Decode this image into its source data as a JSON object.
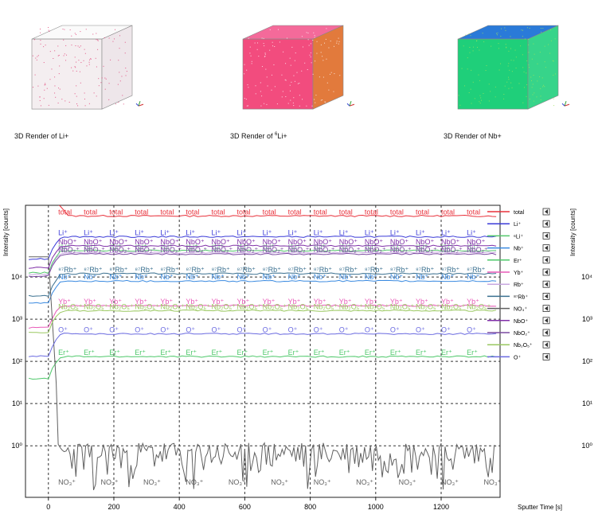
{
  "renders": [
    {
      "caption": "3D Render of Li+",
      "colors": {
        "top": "#fafafa",
        "front": "#f4eef0",
        "side": "#eee6ea",
        "speck": "#e0336e"
      }
    },
    {
      "caption_pre": "3D Render of ",
      "caption_sup": "6",
      "caption_post": "Li+",
      "colors": {
        "top": "#f46a9a",
        "front": "#f24c7e",
        "side": "#e27a3c",
        "speck": "#ffffff"
      }
    },
    {
      "caption": "3D Render of Nb+",
      "colors": {
        "top": "#2a7ad8",
        "front": "#1fcf7a",
        "side": "#37d48a",
        "speck": "#9de35c"
      }
    }
  ],
  "chart_data": {
    "type": "line",
    "xlabel": "Sputter Time [s]",
    "ylabel": "Intensity [counts]",
    "xlim": [
      -70,
      1380
    ],
    "ylog": true,
    "ylim": [
      0.06,
      500000
    ],
    "x_ticks": [
      0,
      200,
      400,
      600,
      800,
      1000,
      1200
    ],
    "y_tick_labels": [
      "10⁰",
      "10¹",
      "10²",
      "10³",
      "10⁴"
    ],
    "y_tick_values": [
      1,
      10,
      100,
      1000,
      10000
    ],
    "grid": "dashed-vertical-horizontal",
    "legend_position": "top-right",
    "series": [
      {
        "name": "total",
        "color": "#e8303a",
        "level": 280000,
        "label_text": "total"
      },
      {
        "name": "Li⁺",
        "color": "#3a3ad8",
        "level": 90000,
        "label_text": "Li⁺"
      },
      {
        "name": "⁶Li⁺",
        "color": "#53c86b",
        "level": 42000,
        "label_text": "⁶Li⁺"
      },
      {
        "name": "Nb⁺",
        "color": "#3a8ae0",
        "level": 8000,
        "label_text": "Nb⁺"
      },
      {
        "name": "Er⁺",
        "color": "#4ec86a",
        "level": 130,
        "label_text": "Er⁺"
      },
      {
        "name": "Yb⁺",
        "color": "#e85ab8",
        "level": 2100,
        "label_text": "Yb⁺"
      },
      {
        "name": "Rb⁺",
        "color": "#c8a8e0",
        "level": 38000,
        "label_text": "Rb⁺"
      },
      {
        "name": "⁸⁷Rb⁺",
        "color": "#3a7090",
        "level": 12000,
        "label_text": "⁸⁷Rb⁺"
      },
      {
        "name": "NO₃⁺",
        "color": "#606060",
        "level": 0.1,
        "label_text": "NO₃⁺"
      },
      {
        "name": "NbO⁺",
        "color": "#8030a8",
        "level": 55000,
        "label_text": "NbO⁺"
      },
      {
        "name": "NbO₂⁺",
        "color": "#7a4aa0",
        "level": 35000,
        "label_text": "NbO₂⁺"
      },
      {
        "name": "Nb₂O₅⁺",
        "color": "#9ac860",
        "level": 1600,
        "label_text": "Nb₂O₅⁺"
      },
      {
        "name": "O⁺",
        "color": "#6a6ae0",
        "level": 450,
        "label_text": "O⁺"
      }
    ]
  }
}
